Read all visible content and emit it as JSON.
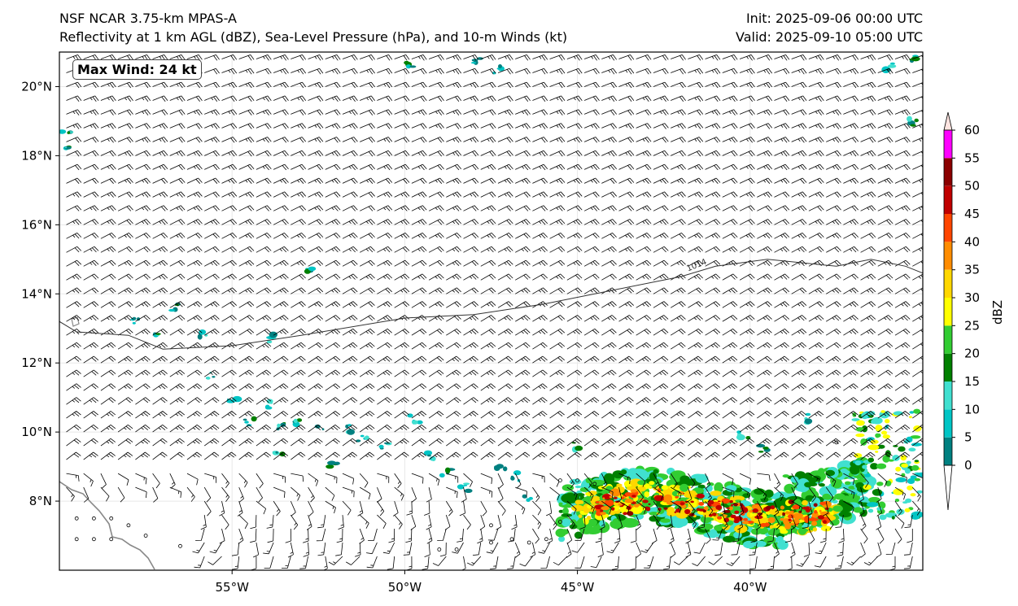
{
  "titles": {
    "left_line1": "NSF NCAR 3.75-km MPAS-A",
    "left_line2": "Reflectivity at 1 km AGL (dBZ), Sea-Level Pressure (hPa), and 10-m Winds (kt)",
    "init": "Init: 2025-09-06 00:00 UTC",
    "valid": "Valid: 2025-09-10 05:00 UTC"
  },
  "annotation": {
    "max_wind": "Max Wind: 24 kt"
  },
  "map": {
    "lon_range": [
      -60,
      -35
    ],
    "lat_range": [
      6,
      21
    ],
    "lat_ticks": [
      {
        "value": 8,
        "label": "8°N"
      },
      {
        "value": 10,
        "label": "10°N"
      },
      {
        "value": 12,
        "label": "12°N"
      },
      {
        "value": 14,
        "label": "14°N"
      },
      {
        "value": 16,
        "label": "16°N"
      },
      {
        "value": 18,
        "label": "18°N"
      },
      {
        "value": 20,
        "label": "20°N"
      }
    ],
    "lon_ticks": [
      {
        "value": -55,
        "label": "55°W"
      },
      {
        "value": -50,
        "label": "50°W"
      },
      {
        "value": -45,
        "label": "45°W"
      },
      {
        "value": -40,
        "label": "40°W"
      }
    ],
    "isobar": {
      "label": "1014",
      "points": [
        [
          -60,
          13.2
        ],
        [
          -59.5,
          12.9
        ],
        [
          -58,
          12.8
        ],
        [
          -57,
          12.4
        ],
        [
          -55,
          12.5
        ],
        [
          -53,
          12.8
        ],
        [
          -50,
          13.3
        ],
        [
          -48,
          13.4
        ],
        [
          -46,
          13.7
        ],
        [
          -44,
          14.1
        ],
        [
          -42,
          14.5
        ],
        [
          -41,
          14.8
        ],
        [
          -39.5,
          15.0
        ],
        [
          -37.5,
          14.8
        ],
        [
          -36.5,
          15.0
        ],
        [
          -35.5,
          14.8
        ],
        [
          -35,
          14.6
        ]
      ]
    },
    "reflectivity_band": {
      "lon_range": [
        -45.5,
        -36.5
      ],
      "lat_range": [
        6.5,
        9.5
      ],
      "core_lat": 7.8
    },
    "wind_arrows": "10-m wind barbs, mostly northeasterly, 15-20 kt",
    "colors": {
      "background": "#ffffff",
      "coastline": "#888888",
      "isobar": "#333333",
      "frame": "#000000"
    }
  },
  "colorbar": {
    "label": "dBZ",
    "ticks": [
      "0",
      "5",
      "10",
      "15",
      "20",
      "25",
      "30",
      "35",
      "40",
      "45",
      "50",
      "55",
      "60"
    ],
    "colors": [
      "#008080",
      "#00c5c5",
      "#40e0d0",
      "#008000",
      "#32cd32",
      "#ffff00",
      "#ffd700",
      "#ff8c00",
      "#ff4500",
      "#c00000",
      "#8b0000",
      "#ff00ff",
      "#ffe4e1"
    ]
  }
}
